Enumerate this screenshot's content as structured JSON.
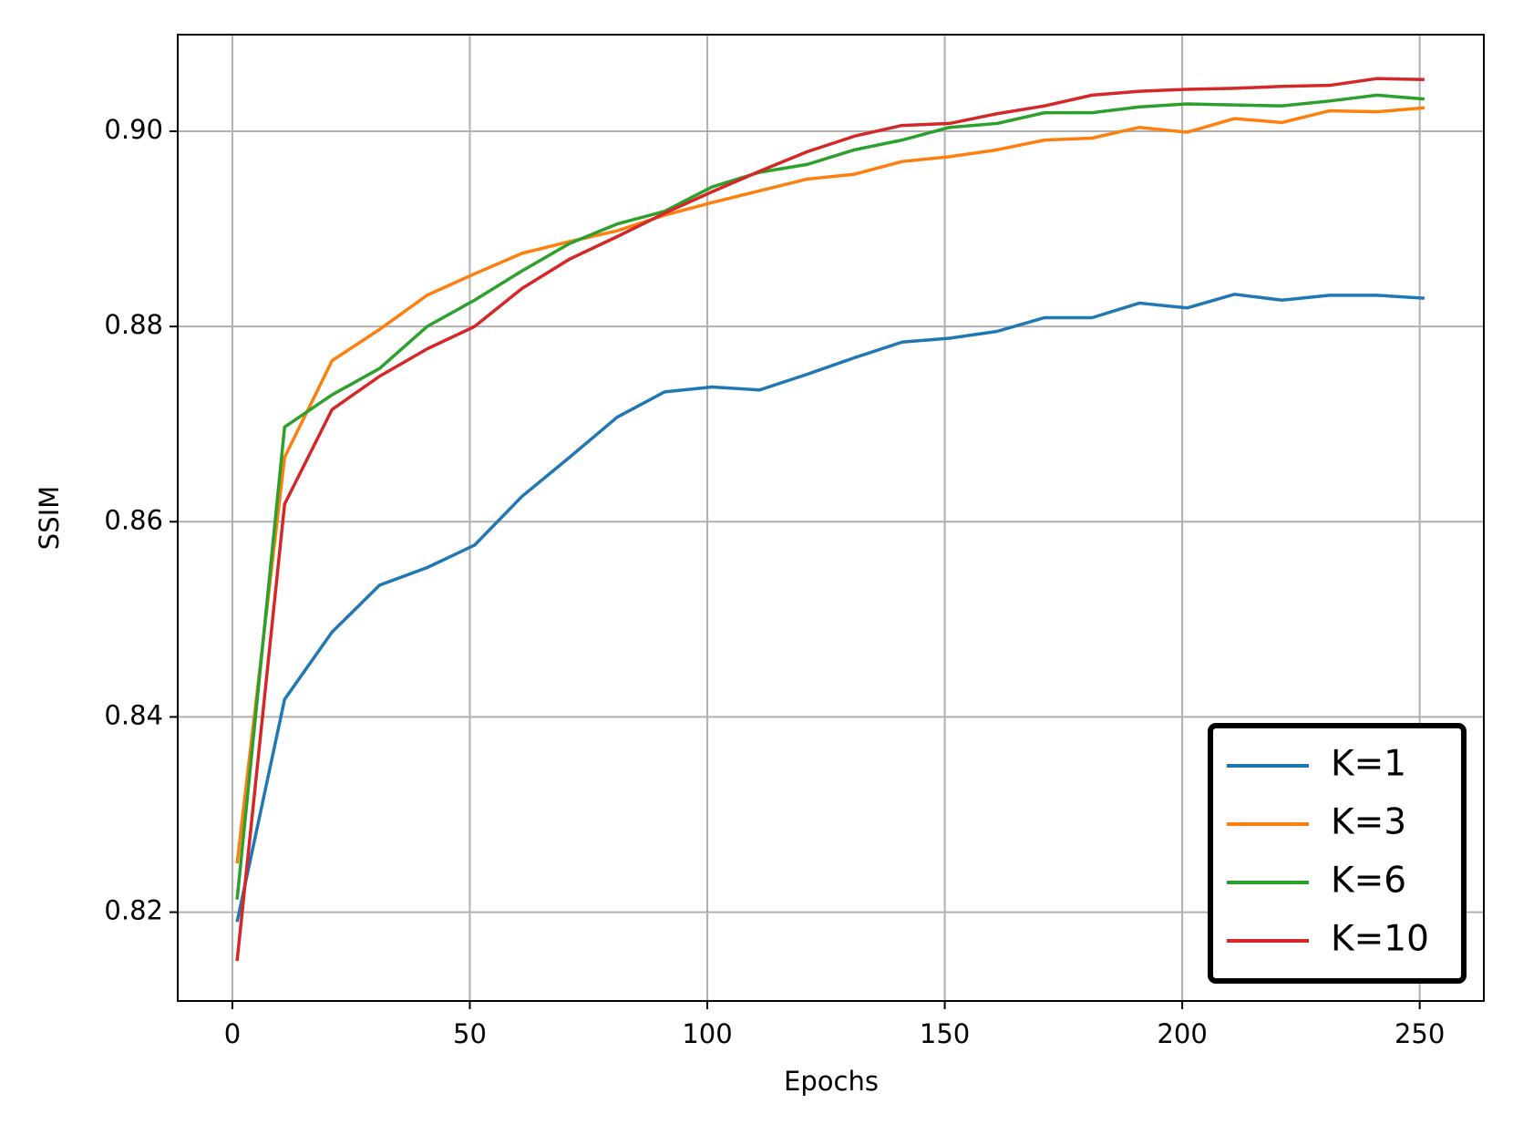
{
  "chart_data": {
    "type": "line",
    "xlabel": "Epochs",
    "ylabel": "SSIM",
    "x": [
      1,
      11,
      21,
      31,
      41,
      51,
      61,
      71,
      81,
      91,
      101,
      111,
      121,
      131,
      141,
      151,
      161,
      171,
      181,
      191,
      201,
      211,
      221,
      231,
      241,
      251
    ],
    "series": [
      {
        "name": "K=1",
        "color": "#1f77b4",
        "values": [
          0.819,
          0.8418,
          0.8487,
          0.8535,
          0.8553,
          0.8576,
          0.8626,
          0.8666,
          0.8707,
          0.8733,
          0.8738,
          0.8735,
          0.8751,
          0.8768,
          0.8784,
          0.8788,
          0.8795,
          0.8809,
          0.8809,
          0.8824,
          0.8819,
          0.8833,
          0.8827,
          0.8832,
          0.8832,
          0.8829
        ]
      },
      {
        "name": "K=3",
        "color": "#ff7f0e",
        "values": [
          0.825,
          0.8666,
          0.8765,
          0.8797,
          0.8832,
          0.8854,
          0.8875,
          0.8887,
          0.8898,
          0.8914,
          0.8927,
          0.8939,
          0.8951,
          0.8956,
          0.8969,
          0.8974,
          0.8981,
          0.8991,
          0.8993,
          0.9004,
          0.8999,
          0.9013,
          0.9009,
          0.9021,
          0.902,
          0.9024
        ]
      },
      {
        "name": "K=6",
        "color": "#2ca02c",
        "values": [
          0.8213,
          0.8697,
          0.873,
          0.8757,
          0.88,
          0.8827,
          0.8857,
          0.8885,
          0.8905,
          0.8918,
          0.8943,
          0.8958,
          0.8966,
          0.8981,
          0.8991,
          0.9004,
          0.9008,
          0.9019,
          0.9019,
          0.9025,
          0.9028,
          0.9027,
          0.9026,
          0.9031,
          0.9037,
          0.9033
        ]
      },
      {
        "name": "K=10",
        "color": "#d62728",
        "values": [
          0.815,
          0.8618,
          0.8715,
          0.8749,
          0.8777,
          0.88,
          0.8839,
          0.8869,
          0.8892,
          0.8916,
          0.8938,
          0.8959,
          0.8979,
          0.8995,
          0.9006,
          0.9008,
          0.9018,
          0.9026,
          0.9037,
          0.9041,
          0.9043,
          0.9044,
          0.9046,
          0.9047,
          0.9054,
          0.9053
        ]
      }
    ],
    "xlim": [
      -11.5,
      263.5
    ],
    "xticks": [
      0,
      50,
      100,
      150,
      200,
      250
    ],
    "ylim": [
      0.8109,
      0.9099
    ],
    "yticks": [
      0.82,
      0.84,
      0.86,
      0.88,
      {
        "value": 0.9,
        "label": "0.90"
      }
    ],
    "grid": true,
    "legend": "lower right"
  }
}
